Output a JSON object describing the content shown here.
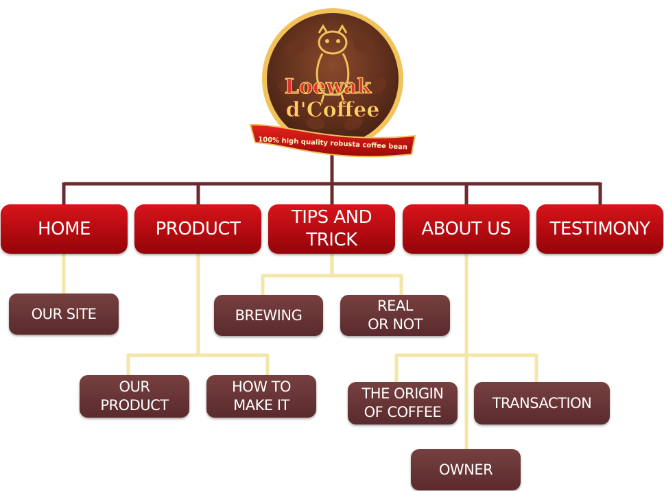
{
  "logo": {
    "line1": "Loewak",
    "line2": "d'Coffee",
    "tagline": "100% high quality robusta coffee bean"
  },
  "menu": {
    "home": "HOME",
    "product": "PRODUCT",
    "tips": "TIPS AND\nTRICK",
    "about": "ABOUT US",
    "testimony": "TESTIMONY"
  },
  "submenu": {
    "our_site": "OUR SITE",
    "brewing": "BREWING",
    "real_or_not": "REAL\nOR NOT",
    "our_product": "OUR\nPRODUCT",
    "how_to_make": "HOW TO\nMAKE IT",
    "origin": "THE ORIGIN\nOF COFFEE",
    "transaction": "TRANSACTION",
    "owner": "OWNER"
  },
  "colors": {
    "main_node": "#c00f15",
    "sub_node": "#6a3436",
    "top_connector": "#6b2a2e",
    "sub_connector": "#f3e6a6"
  }
}
